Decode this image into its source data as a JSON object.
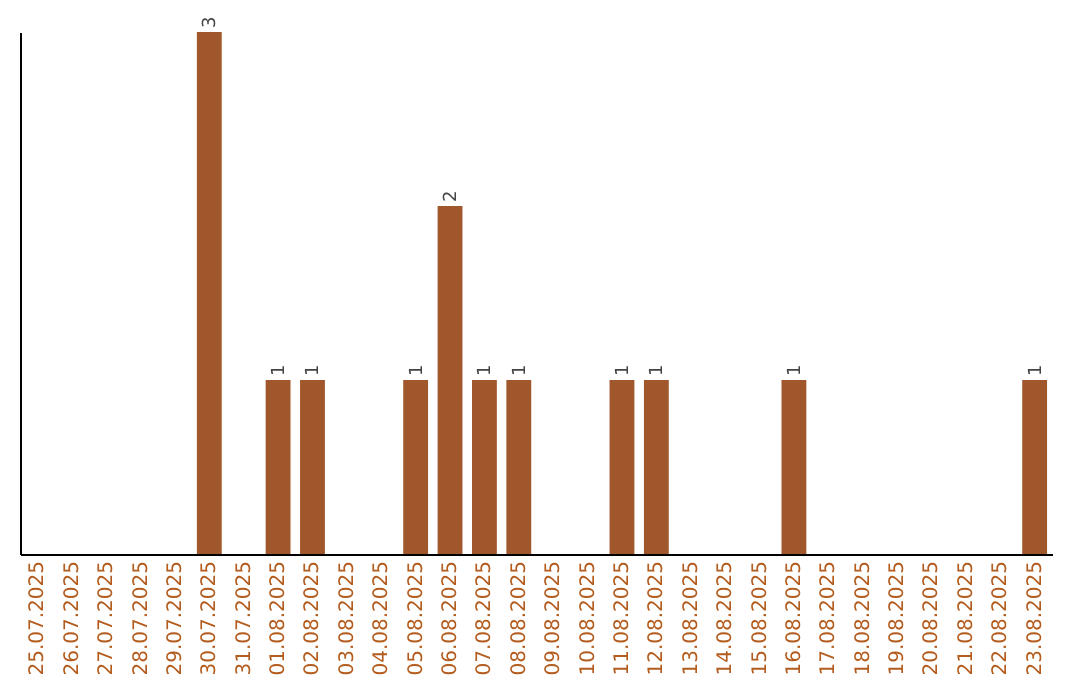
{
  "chart_data": {
    "type": "bar",
    "categories": [
      "25.07.2025",
      "26.07.2025",
      "27.07.2025",
      "28.07.2025",
      "29.07.2025",
      "30.07.2025",
      "31.07.2025",
      "01.08.2025",
      "02.08.2025",
      "03.08.2025",
      "04.08.2025",
      "05.08.2025",
      "06.08.2025",
      "07.08.2025",
      "08.08.2025",
      "09.08.2025",
      "10.08.2025",
      "11.08.2025",
      "12.08.2025",
      "13.08.2025",
      "14.08.2025",
      "15.08.2025",
      "16.08.2025",
      "17.08.2025",
      "18.08.2025",
      "19.08.2025",
      "20.08.2025",
      "21.08.2025",
      "22.08.2025",
      "23.08.2025"
    ],
    "values": [
      0,
      0,
      0,
      0,
      0,
      3,
      0,
      1,
      1,
      0,
      0,
      1,
      2,
      1,
      1,
      0,
      0,
      1,
      1,
      0,
      0,
      0,
      1,
      0,
      0,
      0,
      0,
      0,
      0,
      1
    ],
    "value_labels": [
      null,
      null,
      null,
      null,
      null,
      "3",
      null,
      "1",
      "1",
      null,
      null,
      "1",
      "2",
      "1",
      "1",
      null,
      null,
      "1",
      "1",
      null,
      null,
      null,
      "1",
      null,
      null,
      null,
      null,
      null,
      null,
      "1"
    ],
    "color": "#a0572b",
    "tick_labels": "x"
  }
}
